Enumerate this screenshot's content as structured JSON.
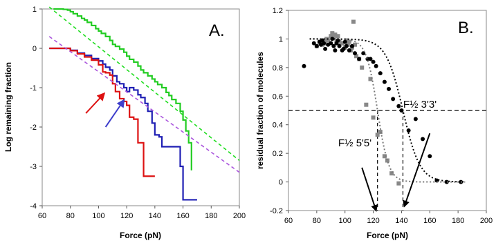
{
  "chart_data": [
    {
      "type": "line",
      "panel_letter": "A.",
      "xlabel": "Force (pN)",
      "ylabel": "Log remaining fraction",
      "xlim": [
        60,
        200
      ],
      "ylim": [
        -4,
        1
      ],
      "xticks": [
        "60",
        "80",
        "100",
        "120",
        "140",
        "160",
        "180",
        "200"
      ],
      "yticks": [
        "1",
        "0",
        "-1",
        "-2",
        "-3",
        "-4"
      ],
      "grid": false,
      "series": [
        {
          "style": "step",
          "color": "#22cc22",
          "x": [
            68,
            72,
            75,
            78,
            80,
            82,
            85,
            88,
            90,
            92,
            95,
            98,
            100,
            102,
            105,
            108,
            110,
            112,
            115,
            118,
            120,
            122,
            125,
            128,
            130,
            132,
            135,
            138,
            140,
            142,
            145,
            148,
            150,
            152,
            155,
            158,
            160,
            162,
            164,
            166
          ],
          "y": [
            1.0,
            1.0,
            0.99,
            0.97,
            0.93,
            0.88,
            0.82,
            0.76,
            0.72,
            0.66,
            0.58,
            0.5,
            0.44,
            0.38,
            0.3,
            0.2,
            0.1,
            0.05,
            -0.02,
            -0.1,
            -0.2,
            -0.28,
            -0.35,
            -0.45,
            -0.55,
            -0.62,
            -0.7,
            -0.78,
            -0.85,
            -0.92,
            -1.0,
            -1.12,
            -1.2,
            -1.3,
            -1.4,
            -1.6,
            -1.82,
            -2.1,
            -2.4,
            -3.1
          ]
        },
        {
          "style": "step",
          "color": "#1f1fb4",
          "x": [
            65,
            75,
            80,
            85,
            90,
            95,
            100,
            103,
            105,
            108,
            110,
            113,
            115,
            118,
            120,
            122,
            125,
            128,
            130,
            133,
            135,
            138,
            140,
            143,
            145,
            150,
            155,
            158,
            160,
            165,
            170
          ],
          "y": [
            0.0,
            0.0,
            -0.05,
            -0.12,
            -0.18,
            -0.26,
            -0.32,
            -0.4,
            -0.48,
            -0.55,
            -0.7,
            -0.85,
            -0.9,
            -1.0,
            -1.1,
            -1.0,
            -1.06,
            -1.18,
            -1.25,
            -1.4,
            -1.6,
            -1.9,
            -2.2,
            -2.25,
            -2.5,
            -2.5,
            -2.5,
            -3.0,
            -3.85,
            -3.85,
            -3.85
          ]
        },
        {
          "style": "step",
          "color": "#dd1111",
          "x": [
            65,
            75,
            80,
            85,
            90,
            95,
            100,
            103,
            105,
            108,
            110,
            112,
            115,
            118,
            120,
            122,
            125,
            128,
            130,
            132,
            135,
            140
          ],
          "y": [
            0.0,
            0.0,
            -0.06,
            -0.14,
            -0.22,
            -0.3,
            -0.42,
            -0.6,
            -0.62,
            -0.68,
            -0.9,
            -1.1,
            -1.28,
            -1.35,
            -1.45,
            -1.75,
            -1.8,
            -2.4,
            -2.4,
            -3.25,
            -3.25,
            -3.25
          ]
        },
        {
          "style": "dashed",
          "color": "#22dd22",
          "x": [
            65,
            200
          ],
          "y": [
            1.05,
            -2.85
          ]
        },
        {
          "style": "dashed",
          "color": "#aa55dd",
          "x": [
            65,
            200
          ],
          "y": [
            0.3,
            -3.15
          ]
        }
      ],
      "arrows": [
        {
          "color": "#dd1111",
          "x": [
            91,
            104
          ],
          "y": [
            -1.65,
            -1.15
          ]
        },
        {
          "color": "#4040cc",
          "x": [
            105,
            118
          ],
          "y": [
            -2.0,
            -1.32
          ]
        }
      ]
    },
    {
      "type": "scatter",
      "panel_letter": "B.",
      "xlabel": "Force (pN)",
      "ylabel": "residual fraction of molecules",
      "xlim": [
        60,
        200
      ],
      "ylim": [
        -0.2,
        1.2
      ],
      "xticks": [
        "60",
        "80",
        "100",
        "120",
        "140",
        "160",
        "180",
        "200"
      ],
      "yticks": [
        "1.2",
        "1",
        "0.8",
        "0.6",
        "0.4",
        "0.2",
        "0",
        "-0.2"
      ],
      "grid": false,
      "series": [
        {
          "marker": "square",
          "color": "#888888",
          "x": [
            80,
            82,
            84,
            86,
            87,
            88,
            90,
            91,
            92,
            93,
            94,
            95,
            96,
            98,
            100,
            101,
            102,
            103,
            104,
            105,
            106,
            107,
            108,
            110,
            112,
            115,
            118,
            120,
            123,
            125,
            128,
            130,
            133,
            138
          ],
          "y": [
            0.95,
            0.98,
            0.96,
            0.97,
            1.0,
            0.99,
            1.02,
            1.04,
            1.01,
            1.03,
            0.98,
            1.02,
            0.98,
            0.97,
            0.94,
            0.99,
            0.96,
            0.98,
            0.92,
            0.94,
            1.12,
            0.96,
            0.88,
            0.86,
            0.8,
            0.54,
            0.72,
            0.45,
            0.33,
            0.35,
            0.18,
            0.15,
            0.06,
            -0.01
          ]
        },
        {
          "marker": "circle",
          "color": "#000000",
          "x": [
            71,
            78,
            80,
            82,
            83,
            84,
            85,
            86,
            88,
            90,
            91,
            92,
            93,
            94,
            95,
            96,
            98,
            99,
            100,
            101,
            103,
            105,
            107,
            110,
            113,
            116,
            118,
            120,
            122,
            125,
            128,
            131,
            134,
            138,
            140,
            145,
            150,
            155,
            160,
            165,
            172,
            182
          ],
          "y": [
            0.81,
            0.97,
            0.95,
            0.98,
            0.96,
            0.99,
            0.97,
            0.93,
            0.96,
            0.97,
            1.0,
            0.95,
            0.92,
            0.97,
            0.99,
            0.95,
            0.92,
            0.93,
            0.98,
            0.95,
            0.92,
            0.95,
            0.9,
            0.86,
            0.9,
            0.86,
            0.86,
            0.84,
            0.81,
            0.76,
            0.7,
            0.65,
            0.58,
            0.53,
            0.5,
            0.36,
            0.44,
            0.3,
            0.18,
            0.01,
            0.0,
            0.0
          ]
        },
        {
          "style": "dotted",
          "color": "#777777",
          "fit": "sigmoid",
          "midpoint": 123,
          "width": 4,
          "domain": [
            75,
            185
          ]
        },
        {
          "style": "dotted",
          "color": "#000000",
          "fit": "sigmoid",
          "midpoint": 141,
          "width": 6,
          "domain": [
            75,
            185
          ]
        }
      ],
      "reference_lines": {
        "horizontal_y": 0.5,
        "vertical_x": [
          123,
          141
        ]
      },
      "annotations": [
        {
          "text": "F½ 5'5'",
          "x": 107,
          "y": 0.25
        },
        {
          "text": "F½ 3'3'",
          "x": 153,
          "y": 0.52
        }
      ],
      "arrows": [
        {
          "color": "#000000",
          "x": [
            112,
            122
          ],
          "y": [
            0.1,
            -0.2
          ]
        },
        {
          "color": "#000000",
          "x": [
            160,
            142
          ],
          "y": [
            0.34,
            -0.17
          ]
        }
      ]
    }
  ]
}
